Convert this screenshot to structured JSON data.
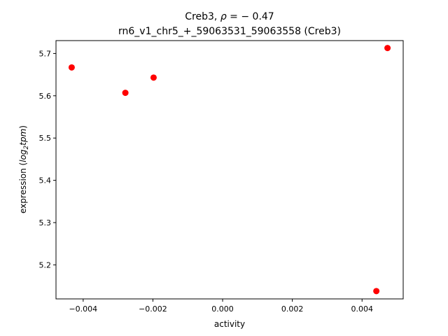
{
  "chart_data": {
    "type": "scatter",
    "title_line1_prefix": "Creb3, ",
    "title_line1_rho": "ρ",
    "title_line1_value": " = − 0.47",
    "title_line2": "rn6_v1_chr5_+_59063531_59063558 (Creb3)",
    "xlabel": "activity",
    "ylabel_prefix": "expression (",
    "ylabel_log": "log",
    "ylabel_sub": "2",
    "ylabel_tpm": "tpm",
    "ylabel_suffix": ")",
    "xlim": [
      -0.00478,
      0.00518
    ],
    "ylim": [
      5.1195,
      5.7305
    ],
    "xticks": [
      -0.004,
      -0.002,
      0.0,
      0.002,
      0.004
    ],
    "xtick_labels": [
      "−0.004",
      "−0.002",
      "0.000",
      "0.002",
      "0.004"
    ],
    "yticks": [
      5.2,
      5.3,
      5.4,
      5.5,
      5.6,
      5.7
    ],
    "ytick_labels": [
      "5.2",
      "5.3",
      "5.4",
      "5.5",
      "5.6",
      "5.7"
    ],
    "grid": false,
    "marker_color": "#ff0000",
    "points": [
      {
        "x": -0.00433,
        "y": 5.667
      },
      {
        "x": -0.00279,
        "y": 5.607
      },
      {
        "x": -0.00198,
        "y": 5.643
      },
      {
        "x": 0.00441,
        "y": 5.138
      },
      {
        "x": 0.00473,
        "y": 5.713
      }
    ]
  }
}
